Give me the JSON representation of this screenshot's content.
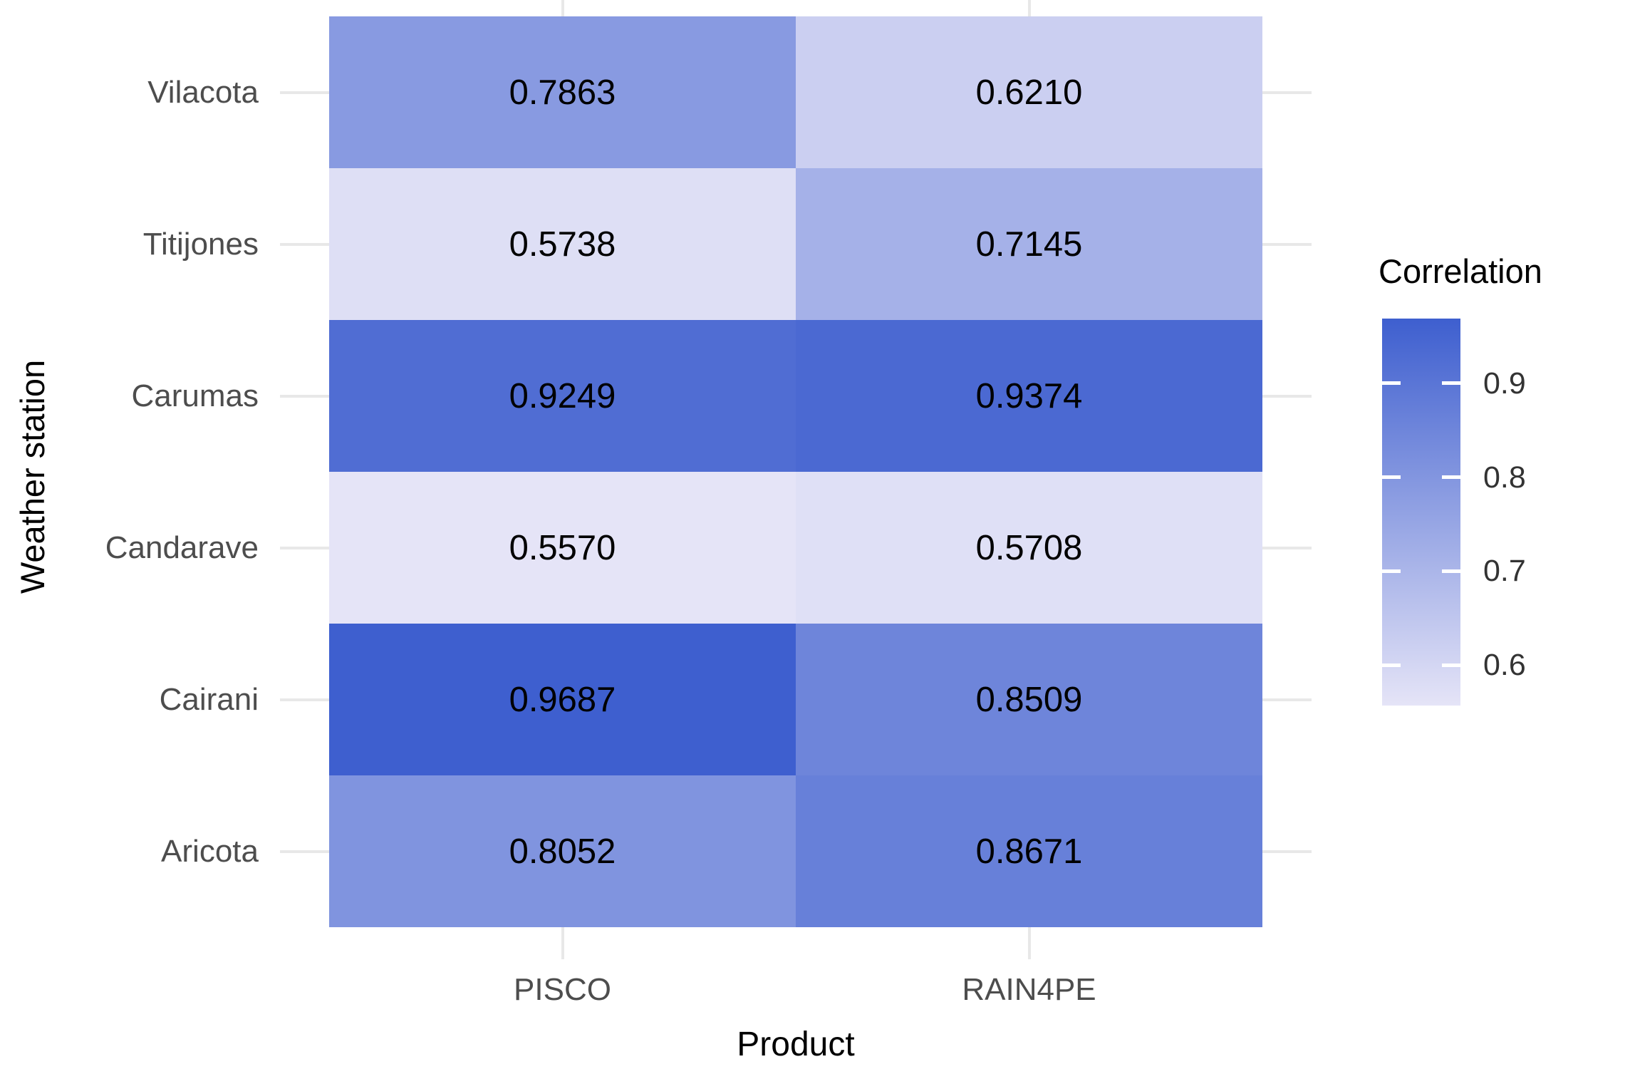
{
  "chart_data": {
    "type": "heatmap",
    "x_axis": {
      "label": "Product",
      "categories": [
        "PISCO",
        "RAIN4PE"
      ]
    },
    "y_axis": {
      "label": "Weather station",
      "categories": [
        "Vilacota",
        "Titijones",
        "Carumas",
        "Candarave",
        "Cairani",
        "Aricota"
      ]
    },
    "rows": [
      {
        "station": "Vilacota",
        "values": [
          0.7863,
          0.621
        ],
        "labels": [
          "0.7863",
          "0.6210"
        ]
      },
      {
        "station": "Titijones",
        "values": [
          0.5738,
          0.7145
        ],
        "labels": [
          "0.5738",
          "0.7145"
        ]
      },
      {
        "station": "Carumas",
        "values": [
          0.9249,
          0.9374
        ],
        "labels": [
          "0.9249",
          "0.9374"
        ]
      },
      {
        "station": "Candarave",
        "values": [
          0.557,
          0.5708
        ],
        "labels": [
          "0.5570",
          "0.5708"
        ]
      },
      {
        "station": "Cairani",
        "values": [
          0.9687,
          0.8509
        ],
        "labels": [
          "0.9687",
          "0.8509"
        ]
      },
      {
        "station": "Aricota",
        "values": [
          0.8052,
          0.8671
        ],
        "labels": [
          "0.8052",
          "0.8671"
        ]
      }
    ],
    "legend": {
      "title": "Correlation",
      "ticks": [
        0.9,
        0.8,
        0.7,
        0.6
      ],
      "tick_labels": [
        "0.9",
        "0.8",
        "0.7",
        "0.6"
      ],
      "domain": [
        0.557,
        0.9687
      ],
      "color_low": "#E5E4F7",
      "color_high": "#3E5FCF"
    },
    "colors": {
      "gridline": "#E8E8E8",
      "axis_text": "#4D4D4D",
      "cell_text": "#000000",
      "title_text": "#000000"
    },
    "layout_hints": {
      "legend_position": "right",
      "grid": "stubs at panel edges only (tiles cover panel)"
    }
  }
}
